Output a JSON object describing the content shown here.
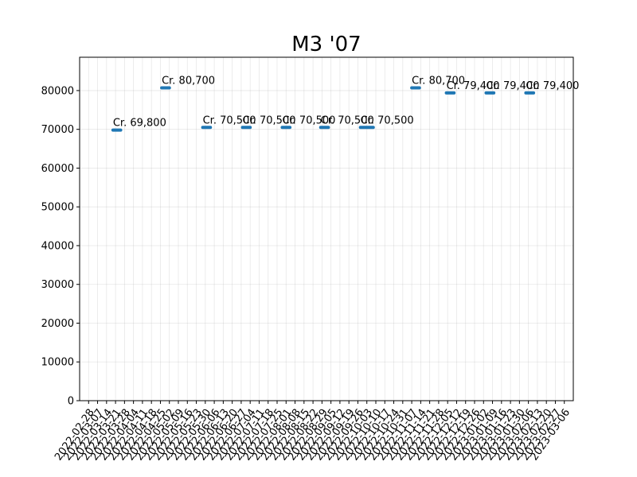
{
  "chart_data": {
    "type": "scatter",
    "title": "M3 '07",
    "xlabel": "",
    "ylabel": "",
    "ylim": [
      0,
      88600
    ],
    "yticks": [
      0,
      10000,
      20000,
      30000,
      40000,
      50000,
      60000,
      70000,
      80000
    ],
    "xlim": [
      "2022-02-21",
      "2023-03-13"
    ],
    "xticks": [
      "2022-02-28",
      "2022-03-07",
      "2022-03-14",
      "2022-03-21",
      "2022-03-28",
      "2022-04-04",
      "2022-04-11",
      "2022-04-18",
      "2022-04-25",
      "2022-05-02",
      "2022-05-09",
      "2022-05-16",
      "2022-05-23",
      "2022-05-30",
      "2022-06-06",
      "2022-06-13",
      "2022-06-20",
      "2022-06-27",
      "2022-07-04",
      "2022-07-11",
      "2022-07-18",
      "2022-07-25",
      "2022-08-01",
      "2022-08-08",
      "2022-08-15",
      "2022-08-22",
      "2022-08-29",
      "2022-09-05",
      "2022-09-12",
      "2022-09-19",
      "2022-09-26",
      "2022-10-03",
      "2022-10-10",
      "2022-10-17",
      "2022-10-24",
      "2022-10-31",
      "2022-11-07",
      "2022-11-14",
      "2022-11-21",
      "2022-11-28",
      "2022-12-05",
      "2022-12-12",
      "2022-12-19",
      "2022-12-26",
      "2023-01-02",
      "2023-01-09",
      "2023-01-16",
      "2023-01-23",
      "2023-01-30",
      "2023-02-06",
      "2023-02-13",
      "2023-02-20",
      "2023-02-27",
      "2023-03-06"
    ],
    "grid": true,
    "color": "#1f77b4",
    "series": [
      {
        "points": [
          {
            "x_start": "2022-03-19",
            "x_end": "2022-03-25",
            "y": 69800,
            "label": "Cr. 69,800"
          },
          {
            "x_start": "2022-04-26",
            "x_end": "2022-05-02",
            "y": 80700,
            "label": "Cr. 80,700"
          },
          {
            "x_start": "2022-05-28",
            "x_end": "2022-06-03",
            "y": 70500,
            "label": "Cr. 70,500"
          },
          {
            "x_start": "2022-06-28",
            "x_end": "2022-07-04",
            "y": 70500,
            "label": "Cr. 70,500"
          },
          {
            "x_start": "2022-07-29",
            "x_end": "2022-08-04",
            "y": 70500,
            "label": "Cr. 70,500"
          },
          {
            "x_start": "2022-08-28",
            "x_end": "2022-09-03",
            "y": 70500,
            "label": "Cr. 70,500"
          },
          {
            "x_start": "2022-09-28",
            "x_end": "2022-10-08",
            "y": 70500,
            "label": "Cr. 70,500"
          },
          {
            "x_start": "2022-11-07",
            "x_end": "2022-11-13",
            "y": 80700,
            "label": "Cr. 80,700"
          },
          {
            "x_start": "2022-12-04",
            "x_end": "2022-12-10",
            "y": 79400,
            "label": "Cr. 79,400"
          },
          {
            "x_start": "2023-01-04",
            "x_end": "2023-01-10",
            "y": 79400,
            "label": "Cr. 79,400"
          },
          {
            "x_start": "2023-02-04",
            "x_end": "2023-02-10",
            "y": 79400,
            "label": "Cr. 79,400"
          }
        ]
      }
    ]
  }
}
